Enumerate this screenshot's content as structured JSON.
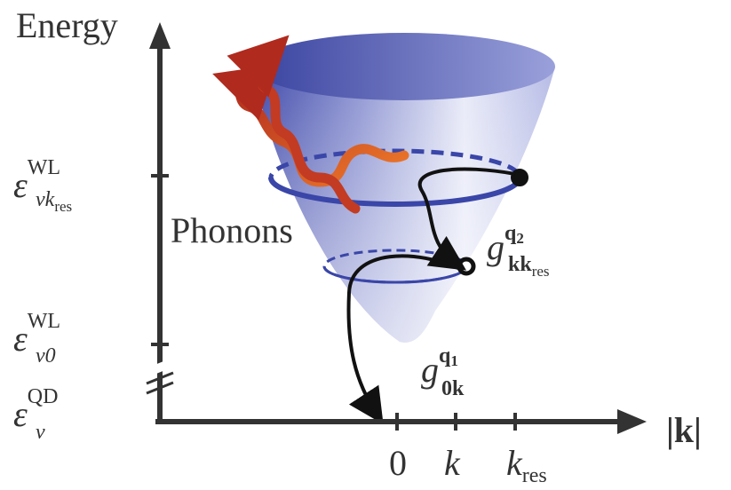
{
  "axes": {
    "y_label": "Energy",
    "x_label": "|k|"
  },
  "x_ticks": [
    {
      "base": "0"
    },
    {
      "base": "k"
    },
    {
      "base": "k",
      "sub": "res"
    }
  ],
  "y_ticks": [
    {
      "base": "ε",
      "sup": "WL",
      "sub": "vk",
      "subsub": "res"
    },
    {
      "base": "ε",
      "sup": "WL",
      "sub": "v0"
    },
    {
      "base": "ε",
      "sup": "QD",
      "sub": "v"
    }
  ],
  "phonons_label": "Phonons",
  "couplings": [
    {
      "base": "g",
      "sup": "q",
      "supsub": "2",
      "sub": "kk",
      "subsub": "res"
    },
    {
      "base": "g",
      "sup": "q",
      "supsub": "1",
      "sub": "0k"
    }
  ]
}
